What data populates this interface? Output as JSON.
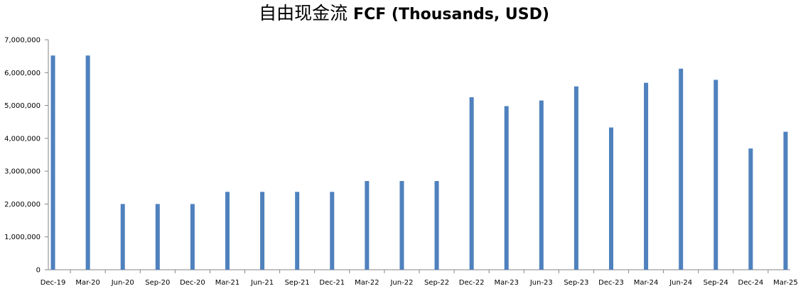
{
  "chart_data": {
    "type": "bar",
    "title_part1": "自由现金流",
    "title_part2": "FCF (Thousands, USD)",
    "xlabel": "",
    "ylabel": "",
    "ylim": [
      0,
      7000000
    ],
    "yticks": [
      "0",
      "1,000,000",
      "2,000,000",
      "3,000,000",
      "4,000,000",
      "5,000,000",
      "6,000,000",
      "7,000,000"
    ],
    "categories": [
      "Dec-19",
      "Mar-20",
      "Jun-20",
      "Sep-20",
      "Dec-20",
      "Mar-21",
      "Jun-21",
      "Sep-21",
      "Dec-21",
      "Mar-22",
      "Jun-22",
      "Sep-22",
      "Dec-22",
      "Mar-23",
      "Jun-23",
      "Sep-23",
      "Dec-23",
      "Mar-24",
      "Jun-24",
      "Sep-24",
      "Dec-24",
      "Mar-25"
    ],
    "bars": [
      {
        "date": "2019-12",
        "value": 6520000
      },
      {
        "date": "2020-03",
        "value": 6520000
      },
      {
        "date": "2020-06",
        "value": 2000000
      },
      {
        "date": "2020-09",
        "value": 2000000
      },
      {
        "date": "2020-12",
        "value": 2000000
      },
      {
        "date": "2021-03",
        "value": 2370000
      },
      {
        "date": "2021-06",
        "value": 2370000
      },
      {
        "date": "2021-09",
        "value": 2370000
      },
      {
        "date": "2021-12",
        "value": 2370000
      },
      {
        "date": "2022-03",
        "value": 2700000
      },
      {
        "date": "2022-06",
        "value": 2700000
      },
      {
        "date": "2022-09",
        "value": 2700000
      },
      {
        "date": "2022-12",
        "value": 5250000
      },
      {
        "date": "2023-03",
        "value": 4980000
      },
      {
        "date": "2023-06",
        "value": 5150000
      },
      {
        "date": "2023-09",
        "value": 5580000
      },
      {
        "date": "2023-12",
        "value": 4330000
      },
      {
        "date": "2024-03",
        "value": 5690000
      },
      {
        "date": "2024-06",
        "value": 6120000
      },
      {
        "date": "2024-09",
        "value": 5780000
      },
      {
        "date": "2024-12",
        "value": 3690000
      },
      {
        "date": "2025-03",
        "value": 4200000
      }
    ],
    "bar_color": "#4f81bd",
    "grid": false,
    "legend": "none"
  }
}
